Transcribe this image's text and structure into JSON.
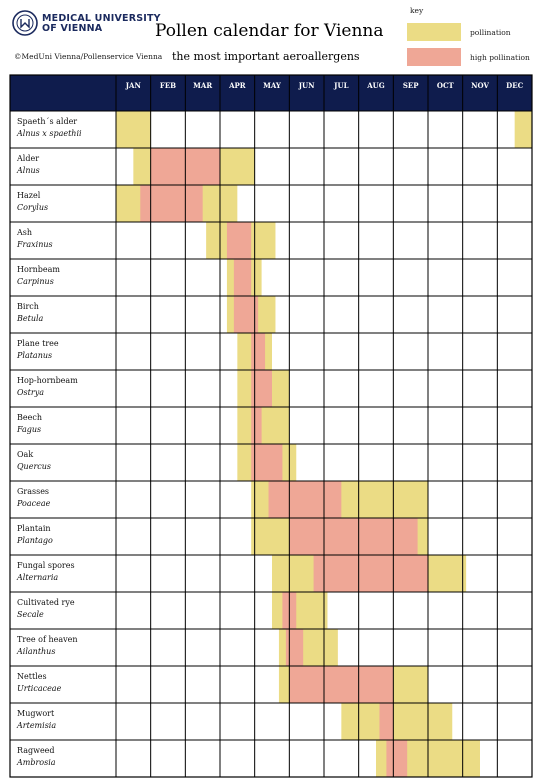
{
  "header": {
    "logo_text_line1": "MEDICAL UNIVERSITY",
    "logo_text_line2": "OF VIENNA",
    "copyright": "©MedUni Vienna/Pollenservice Vienna",
    "title": "Pollen calendar for Vienna",
    "subtitle": "the most important aeroallergens"
  },
  "key": {
    "label": "key",
    "pollination": "pollination",
    "high_pollination": "high pollination"
  },
  "colors": {
    "header_bg": "#0f1c4d",
    "header_text": "#ffffff",
    "pollination": "#ebdc85",
    "high_pollination": "#efa796",
    "grid": "#000000",
    "logo": "#1b2a5e"
  },
  "chart_data": {
    "type": "table",
    "title": "Pollen calendar for Vienna",
    "subtitle": "the most important aeroallergens",
    "months": [
      "JAN",
      "FEB",
      "MAR",
      "APR",
      "MAY",
      "JUN",
      "JUL",
      "AUG",
      "SEP",
      "OCT",
      "NOV",
      "DEC"
    ],
    "value_unit": "month index (0 = start of January, 12 = end of December)",
    "legend": [
      "pollination",
      "high pollination"
    ],
    "rows": [
      {
        "name": "Spaeth´s alder",
        "latin": "Alnus x spaethii",
        "pollination": [
          [
            0,
            1
          ],
          [
            11.5,
            12
          ]
        ],
        "high": []
      },
      {
        "name": "Alder",
        "latin": "Alnus",
        "pollination": [
          [
            0.5,
            4
          ]
        ],
        "high": [
          [
            1,
            3
          ]
        ]
      },
      {
        "name": "Hazel",
        "latin": "Corylus",
        "pollination": [
          [
            0,
            3.5
          ]
        ],
        "high": [
          [
            0.7,
            2.5
          ]
        ]
      },
      {
        "name": "Ash",
        "latin": "Fraxinus",
        "pollination": [
          [
            2.6,
            4.6
          ]
        ],
        "high": [
          [
            3.2,
            3.9
          ]
        ]
      },
      {
        "name": "Hornbeam",
        "latin": "Carpinus",
        "pollination": [
          [
            3.2,
            4.2
          ]
        ],
        "high": [
          [
            3.4,
            3.9
          ]
        ]
      },
      {
        "name": "Birch",
        "latin": "Betula",
        "pollination": [
          [
            3.2,
            4.6
          ]
        ],
        "high": [
          [
            3.4,
            4.1
          ]
        ]
      },
      {
        "name": "Plane tree",
        "latin": "Platanus",
        "pollination": [
          [
            3.5,
            4.5
          ]
        ],
        "high": [
          [
            3.9,
            4.3
          ]
        ]
      },
      {
        "name": "Hop-hornbeam",
        "latin": "Ostrya",
        "pollination": [
          [
            3.5,
            5
          ]
        ],
        "high": [
          [
            3.9,
            4.5
          ]
        ]
      },
      {
        "name": "Beech",
        "latin": "Fagus",
        "pollination": [
          [
            3.5,
            5
          ]
        ],
        "high": [
          [
            3.9,
            4.2
          ]
        ]
      },
      {
        "name": "Oak",
        "latin": "Quercus",
        "pollination": [
          [
            3.5,
            5.2
          ]
        ],
        "high": [
          [
            3.9,
            4.8
          ]
        ]
      },
      {
        "name": "Grasses",
        "latin": "Poaceae",
        "pollination": [
          [
            3.9,
            9
          ]
        ],
        "high": [
          [
            4.4,
            6.5
          ]
        ]
      },
      {
        "name": "Plantain",
        "latin": "Plantago",
        "pollination": [
          [
            3.9,
            9
          ]
        ],
        "high": [
          [
            5,
            8.7
          ]
        ]
      },
      {
        "name": "Fungal spores",
        "latin": "Alternaria",
        "pollination": [
          [
            4.5,
            10.1
          ]
        ],
        "high": [
          [
            5.7,
            9
          ]
        ]
      },
      {
        "name": "Cultivated rye",
        "latin": "Secale",
        "pollination": [
          [
            4.5,
            6.1
          ]
        ],
        "high": [
          [
            4.8,
            5.2
          ]
        ]
      },
      {
        "name": "Tree of heaven",
        "latin": "Ailanthus",
        "pollination": [
          [
            4.7,
            6.4
          ]
        ],
        "high": [
          [
            4.9,
            5.4
          ]
        ]
      },
      {
        "name": "Nettles",
        "latin": "Urticaceae",
        "pollination": [
          [
            4.7,
            9
          ]
        ],
        "high": [
          [
            5,
            8
          ]
        ]
      },
      {
        "name": "Mugwort",
        "latin": "Artemisia",
        "pollination": [
          [
            6.5,
            9.7
          ]
        ],
        "high": [
          [
            7.6,
            8
          ]
        ]
      },
      {
        "name": "Ragweed",
        "latin": "Ambrosia",
        "pollination": [
          [
            7.5,
            10.5
          ]
        ],
        "high": [
          [
            7.8,
            8.4
          ]
        ]
      }
    ]
  }
}
